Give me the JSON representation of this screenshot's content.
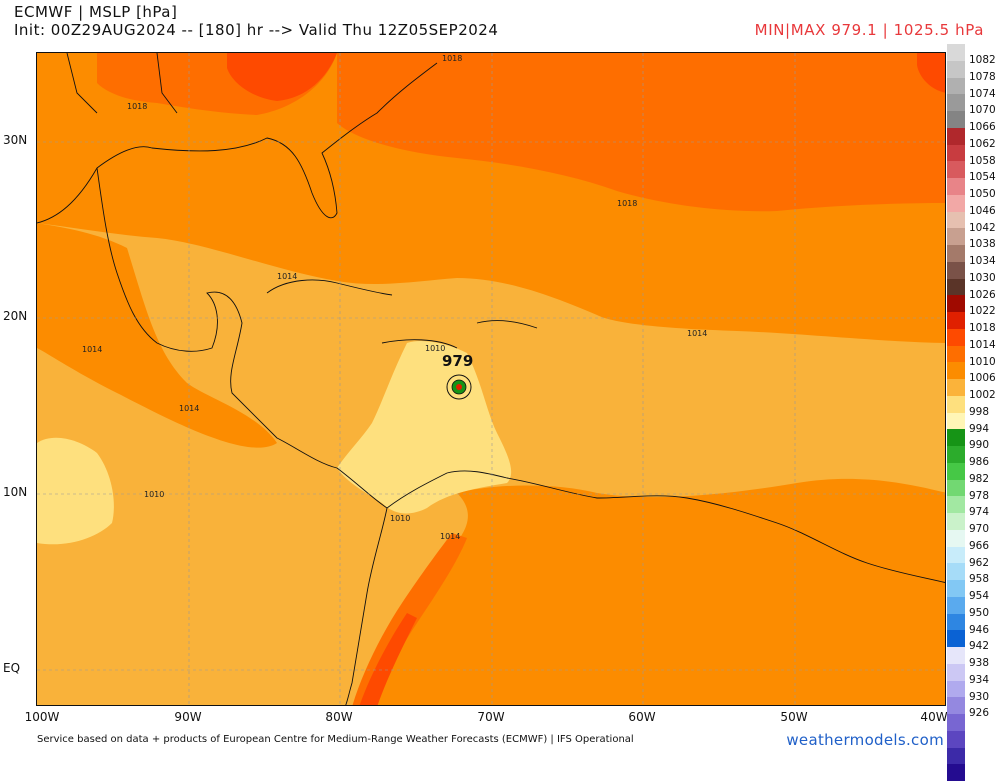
{
  "header": {
    "title": "ECMWF | MSLP [hPa]",
    "init_line": "Init: 00Z29AUG2024 -- [180] hr --> Valid Thu 12Z05SEP2024",
    "minmax": "MIN|MAX 979.1 | 1025.5 hPa"
  },
  "map": {
    "lat_labels": [
      "30N",
      "20N",
      "10N",
      "EQ"
    ],
    "lon_labels": [
      "100W",
      "90W",
      "80W",
      "70W",
      "60W",
      "50W",
      "40W"
    ],
    "contour_labels": [
      "1018",
      "1018",
      "1018",
      "1014",
      "1014",
      "1014",
      "1014",
      "1010",
      "1010",
      "1010",
      "1014"
    ],
    "storm": {
      "label": "979",
      "min_pressure": 979.1
    }
  },
  "colorbar": {
    "labels": [
      "1082",
      "1078",
      "1074",
      "1070",
      "1066",
      "1062",
      "1058",
      "1054",
      "1050",
      "1046",
      "1042",
      "1038",
      "1034",
      "1030",
      "1026",
      "1022",
      "1018",
      "1014",
      "1010",
      "1006",
      "1002",
      "998",
      "994",
      "990",
      "986",
      "982",
      "978",
      "974",
      "970",
      "966",
      "962",
      "958",
      "954",
      "950",
      "946",
      "942",
      "938",
      "934",
      "930",
      "926"
    ],
    "colors": [
      "#d9d9d9",
      "#c6c6c6",
      "#b0b0b0",
      "#9a9a9a",
      "#848484",
      "#b0282c",
      "#c83c40",
      "#d85a5e",
      "#e88488",
      "#f2a8a6",
      "#e6c0b0",
      "#c8a090",
      "#a47a6a",
      "#7a5248",
      "#5a3428",
      "#a00a00",
      "#e02000",
      "#fe4a00",
      "#fe6e00",
      "#fc8c00",
      "#fbb33a",
      "#fee07e",
      "#fff6b6",
      "#169416",
      "#2cac2c",
      "#46c846",
      "#72d872",
      "#a2e8a2",
      "#caf2ca",
      "#e6f8f2",
      "#c8ecfa",
      "#a6dcf8",
      "#82c8f4",
      "#5aaaee",
      "#2e86e2",
      "#0a62d4",
      "#e6e6fa",
      "#ccc8f4",
      "#b0aaee",
      "#9488e0",
      "#7866d2",
      "#5c46c0",
      "#3c2aa8",
      "#240c90"
    ]
  },
  "footer": {
    "source": "Service based on data + products of European Centre for Medium-Range Weather Forecasts (ECMWF) | IFS Operational",
    "brand": "weathermodels.com"
  }
}
